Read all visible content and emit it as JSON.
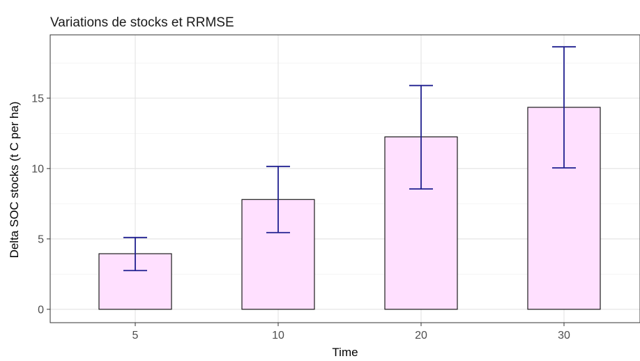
{
  "chart_data": {
    "type": "bar",
    "title": "Variations de stocks et RRMSE",
    "xlabel": "Time",
    "ylabel": "Delta SOC stocks (t C per ha)",
    "categories": [
      "5",
      "10",
      "20",
      "30"
    ],
    "values": [
      3.95,
      7.8,
      12.25,
      14.35
    ],
    "error_low": [
      2.75,
      5.45,
      8.55,
      10.05
    ],
    "error_high": [
      5.1,
      10.15,
      15.9,
      18.65
    ],
    "yticks": [
      "0",
      "5",
      "10",
      "15"
    ],
    "ylim": [
      -0.95,
      19.5
    ],
    "grid": true,
    "bar_fill": "#ffe0ff",
    "bar_outline": "#1a1a1a",
    "errorbar_color": "#1f1f8f"
  }
}
